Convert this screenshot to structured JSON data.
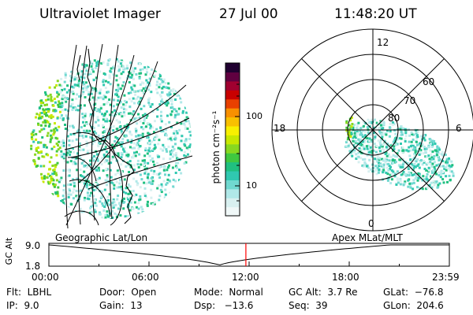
{
  "header": {
    "title": "Ultraviolet Imager",
    "date": "27 Jul 00",
    "time": "11:48:20 UT"
  },
  "colorbar": {
    "unit_label": "photon cm⁻²s⁻¹",
    "tick_labels": [
      "100",
      "10"
    ],
    "colors": [
      "#f0f8f8",
      "#d8f0f0",
      "#b0e8e8",
      "#70d8d0",
      "#30c8b0",
      "#20c080",
      "#40c840",
      "#88d820",
      "#c8e800",
      "#f8f000",
      "#f8c000",
      "#f89000",
      "#e84000",
      "#c80000",
      "#a00030",
      "#600040",
      "#200030"
    ]
  },
  "image_panel": {
    "left_label": "Geographic Lat/Lon",
    "right_label": "Apex MLat/MLT"
  },
  "polar_plot": {
    "mlt_labels": [
      "12",
      "18",
      "6",
      "0"
    ],
    "lat_labels": [
      "60",
      "70",
      "80"
    ]
  },
  "altitude_plot": {
    "ylabel": "GC Alt",
    "ytick_labels": [
      "9.0",
      "1.8"
    ],
    "xtick_labels": [
      "00:00",
      "06:00",
      "12:00",
      "18:00",
      "23:59"
    ],
    "current_time_hours": 11.805,
    "marker_color": "#ff0000"
  },
  "status": {
    "flt": "Flt:  LBHL",
    "ip": "IP:  9.0",
    "door": "Door:  Open",
    "gain": "Gain:  13",
    "mode": "Mode:  Normal",
    "dsp": "Dsp:   −13.6",
    "gc_alt": "GC Alt:  3.7 Re",
    "seq": "Seq:  39",
    "glat": "GLat:  −76.8",
    "glon": "GLon:  204.6"
  }
}
